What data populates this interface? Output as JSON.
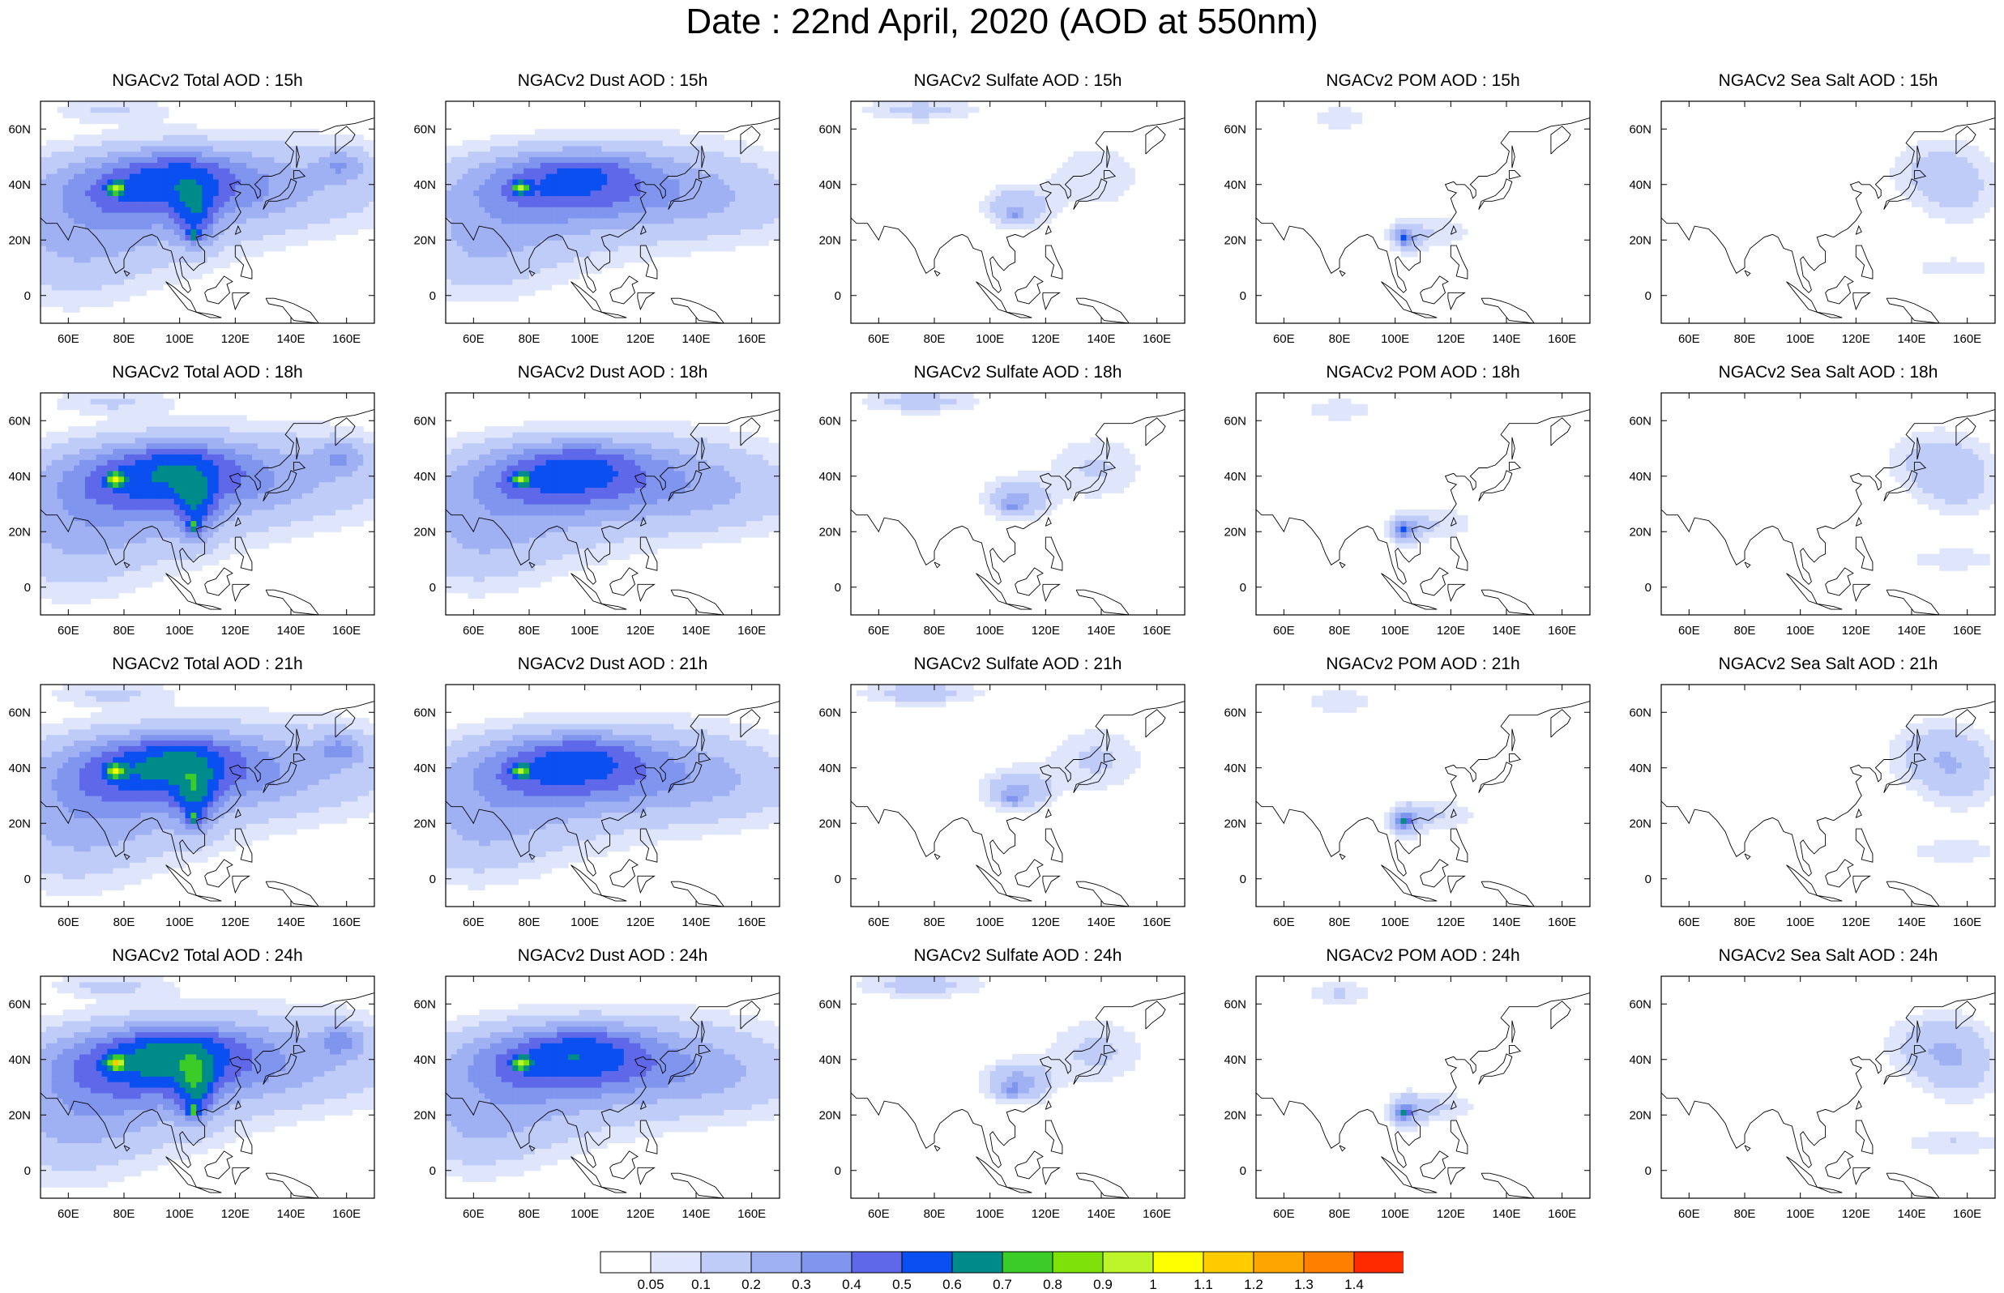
{
  "title": "Date : 22nd April, 2020 (AOD at 550nm)",
  "axes": {
    "x_ticks": [
      {
        "value": 60,
        "label": "60E"
      },
      {
        "value": 80,
        "label": "80E"
      },
      {
        "value": 100,
        "label": "100E"
      },
      {
        "value": 120,
        "label": "120E"
      },
      {
        "value": 140,
        "label": "140E"
      },
      {
        "value": 160,
        "label": "160E"
      }
    ],
    "y_ticks": [
      {
        "value": 0,
        "label": "0"
      },
      {
        "value": 20,
        "label": "20N"
      },
      {
        "value": 40,
        "label": "40N"
      },
      {
        "value": 60,
        "label": "60N"
      }
    ],
    "lon_range": [
      50,
      170
    ],
    "lat_range": [
      -10,
      70
    ]
  },
  "colorbar": {
    "labels": [
      "0.05",
      "0.1",
      "0.2",
      "0.3",
      "0.4",
      "0.5",
      "0.6",
      "0.7",
      "0.8",
      "0.9",
      "1",
      "1.1",
      "1.2",
      "1.3",
      "1.4"
    ],
    "colors": [
      "#ffffff",
      "#dfe6fb",
      "#bfccf7",
      "#9fb1f2",
      "#7f95ee",
      "#5f68e8",
      "#0a4ff0",
      "#008b8b",
      "#3ccc28",
      "#7ce20a",
      "#bef52a",
      "#ffff00",
      "#ffcc00",
      "#ffa500",
      "#ff7f00",
      "#ff2a00"
    ]
  },
  "coastline": [
    [
      [
        48,
        30
      ],
      [
        52,
        26
      ],
      [
        56,
        26
      ],
      [
        58,
        23
      ],
      [
        60,
        20
      ],
      [
        62,
        25
      ],
      [
        67,
        24
      ],
      [
        70,
        21
      ],
      [
        73,
        17
      ],
      [
        75,
        12
      ],
      [
        77,
        8
      ],
      [
        80,
        10
      ],
      [
        80,
        13
      ],
      [
        82,
        17
      ],
      [
        87,
        21
      ],
      [
        90,
        22
      ],
      [
        92,
        21
      ],
      [
        94,
        17
      ],
      [
        97,
        16
      ],
      [
        98,
        12
      ],
      [
        99,
        8
      ],
      [
        101,
        3
      ],
      [
        103,
        1
      ],
      [
        104,
        2
      ],
      [
        103,
        5
      ],
      [
        101,
        7
      ],
      [
        100,
        13
      ],
      [
        101,
        14
      ],
      [
        103,
        11
      ],
      [
        105,
        9
      ],
      [
        107,
        11
      ],
      [
        109,
        12
      ],
      [
        109,
        16
      ],
      [
        107,
        18
      ],
      [
        106,
        21
      ],
      [
        109,
        22
      ],
      [
        112,
        21
      ],
      [
        115,
        23
      ],
      [
        117,
        24
      ],
      [
        120,
        27
      ],
      [
        122,
        30
      ],
      [
        121,
        32
      ],
      [
        120,
        35
      ],
      [
        122,
        37
      ],
      [
        119,
        38
      ],
      [
        118,
        40
      ],
      [
        121,
        41
      ],
      [
        122,
        40
      ],
      [
        125,
        40
      ],
      [
        127,
        38
      ],
      [
        128,
        35
      ],
      [
        129,
        36
      ],
      [
        129,
        38
      ],
      [
        127,
        40
      ],
      [
        130,
        43
      ],
      [
        133,
        43
      ],
      [
        136,
        44
      ],
      [
        140,
        48
      ],
      [
        141,
        52
      ],
      [
        138,
        55
      ],
      [
        141,
        59
      ],
      [
        151,
        59
      ],
      [
        156,
        61
      ],
      [
        163,
        62
      ],
      [
        170,
        64
      ]
    ],
    [
      [
        156,
        51
      ],
      [
        158,
        53
      ],
      [
        162,
        56
      ],
      [
        163,
        58
      ],
      [
        160,
        61
      ],
      [
        156,
        58
      ],
      [
        156,
        51
      ]
    ],
    [
      [
        130,
        31
      ],
      [
        132,
        34
      ],
      [
        135,
        34
      ],
      [
        139,
        35
      ],
      [
        141,
        38
      ],
      [
        142,
        41
      ],
      [
        140,
        42
      ],
      [
        139,
        39
      ],
      [
        136,
        36
      ],
      [
        131,
        34
      ],
      [
        130,
        31
      ]
    ],
    [
      [
        141,
        42
      ],
      [
        145,
        43
      ],
      [
        143,
        45
      ],
      [
        141,
        45
      ],
      [
        141,
        42
      ]
    ],
    [
      [
        142,
        46
      ],
      [
        143,
        50
      ],
      [
        142,
        54
      ],
      [
        142,
        46
      ]
    ],
    [
      [
        120,
        22
      ],
      [
        122,
        23
      ],
      [
        121,
        25
      ],
      [
        120,
        22
      ]
    ],
    [
      [
        120,
        18
      ],
      [
        122,
        18
      ],
      [
        124,
        13
      ],
      [
        126,
        9
      ],
      [
        126,
        6
      ],
      [
        122,
        7
      ],
      [
        123,
        11
      ],
      [
        120,
        14
      ],
      [
        120,
        18
      ]
    ],
    [
      [
        95,
        5
      ],
      [
        98,
        3
      ],
      [
        104,
        -2
      ],
      [
        106,
        -6
      ],
      [
        103,
        -5
      ],
      [
        99,
        0
      ],
      [
        95,
        5
      ]
    ],
    [
      [
        106,
        -6
      ],
      [
        112,
        -7
      ],
      [
        115,
        -8
      ],
      [
        111,
        -8
      ],
      [
        106,
        -6
      ]
    ],
    [
      [
        109,
        1
      ],
      [
        110,
        -2
      ],
      [
        114,
        -3
      ],
      [
        116,
        -1
      ],
      [
        118,
        1
      ],
      [
        117,
        4
      ],
      [
        119,
        5
      ],
      [
        116,
        7
      ],
      [
        113,
        3
      ],
      [
        110,
        2
      ],
      [
        109,
        1
      ]
    ],
    [
      [
        119,
        1
      ],
      [
        121,
        1
      ],
      [
        125,
        1
      ],
      [
        122,
        -1
      ],
      [
        121,
        -3
      ],
      [
        120,
        -5
      ],
      [
        119,
        -1
      ],
      [
        119,
        1
      ]
    ],
    [
      [
        131,
        -1
      ],
      [
        134,
        -1
      ],
      [
        138,
        -2
      ],
      [
        141,
        -3
      ],
      [
        147,
        -6
      ],
      [
        150,
        -10
      ],
      [
        141,
        -9
      ],
      [
        137,
        -4
      ],
      [
        132,
        -3
      ],
      [
        131,
        -1
      ]
    ],
    [
      [
        80,
        9
      ],
      [
        81,
        7
      ],
      [
        82,
        8
      ],
      [
        80,
        9
      ]
    ]
  ],
  "rows": [
    {
      "time": "15h",
      "panels": [
        {
          "title": "NGACv2 Total AOD : 15h",
          "field": "total",
          "amp": 1.0
        },
        {
          "title": "NGACv2 Dust AOD : 15h",
          "field": "dust",
          "amp": 1.0
        },
        {
          "title": "NGACv2 Sulfate AOD : 15h",
          "field": "sulfate",
          "amp": 0.9
        },
        {
          "title": "NGACv2 POM AOD : 15h",
          "field": "pom",
          "amp": 0.9
        },
        {
          "title": "NGACv2 Sea Salt AOD : 15h",
          "field": "seasalt",
          "amp": 0.8
        }
      ]
    },
    {
      "time": "18h",
      "panels": [
        {
          "title": "NGACv2 Total AOD : 18h",
          "field": "total",
          "amp": 1.05
        },
        {
          "title": "NGACv2 Dust AOD : 18h",
          "field": "dust",
          "amp": 1.05
        },
        {
          "title": "NGACv2 Sulfate AOD : 18h",
          "field": "sulfate",
          "amp": 1.0
        },
        {
          "title": "NGACv2 POM AOD : 18h",
          "field": "pom",
          "amp": 1.0
        },
        {
          "title": "NGACv2 Sea Salt AOD : 18h",
          "field": "seasalt",
          "amp": 0.9
        }
      ]
    },
    {
      "time": "21h",
      "panels": [
        {
          "title": "NGACv2 Total AOD : 21h",
          "field": "total",
          "amp": 1.1
        },
        {
          "title": "NGACv2 Dust AOD : 21h",
          "field": "dust",
          "amp": 1.05
        },
        {
          "title": "NGACv2 Sulfate AOD : 21h",
          "field": "sulfate",
          "amp": 1.05
        },
        {
          "title": "NGACv2 POM AOD : 21h",
          "field": "pom",
          "amp": 1.05
        },
        {
          "title": "NGACv2 Sea Salt AOD : 21h",
          "field": "seasalt",
          "amp": 1.0
        }
      ]
    },
    {
      "time": "24h",
      "panels": [
        {
          "title": "NGACv2 Total AOD : 24h",
          "field": "total",
          "amp": 1.15
        },
        {
          "title": "NGACv2 Dust AOD : 24h",
          "field": "dust",
          "amp": 1.1
        },
        {
          "title": "NGACv2 Sulfate AOD : 24h",
          "field": "sulfate",
          "amp": 1.1
        },
        {
          "title": "NGACv2 POM AOD : 24h",
          "field": "pom",
          "amp": 1.1
        },
        {
          "title": "NGACv2 Sea Salt  AOD : 24h",
          "field": "seasalt",
          "amp": 1.05
        }
      ]
    }
  ],
  "fields": {
    "dust": [
      {
        "lon": 92,
        "lat": 40,
        "slon": 25,
        "slat": 8,
        "amp": 0.32
      },
      {
        "lon": 80,
        "lat": 30,
        "slon": 30,
        "slat": 14,
        "amp": 0.18
      },
      {
        "lon": 130,
        "lat": 40,
        "slon": 30,
        "slat": 12,
        "amp": 0.14
      },
      {
        "lon": 150,
        "lat": 32,
        "slon": 25,
        "slat": 10,
        "amp": 0.09
      },
      {
        "lon": 60,
        "lat": 15,
        "slon": 18,
        "slat": 12,
        "amp": 0.12
      },
      {
        "lon": 77,
        "lat": 39,
        "slon": 2,
        "slat": 1.5,
        "amp": 0.45
      },
      {
        "lon": 100,
        "lat": 47,
        "slon": 15,
        "slat": 4,
        "amp": 0.12
      }
    ],
    "sulfate": [
      {
        "lon": 110,
        "lat": 32,
        "slon": 8,
        "slat": 5,
        "amp": 0.22
      },
      {
        "lon": 138,
        "lat": 43,
        "slon": 12,
        "slat": 8,
        "amp": 0.11
      },
      {
        "lon": 75,
        "lat": 67,
        "slon": 15,
        "slat": 3,
        "amp": 0.14
      },
      {
        "lon": 108,
        "lat": 29,
        "slon": 2,
        "slat": 1.5,
        "amp": 0.18
      }
    ],
    "pom": [
      {
        "lon": 104,
        "lat": 21,
        "slon": 4,
        "slat": 4,
        "amp": 0.2
      },
      {
        "lon": 115,
        "lat": 23,
        "slon": 10,
        "slat": 4,
        "amp": 0.1
      },
      {
        "lon": 80,
        "lat": 64,
        "slon": 8,
        "slat": 3,
        "amp": 0.1
      },
      {
        "lon": 103,
        "lat": 21,
        "slon": 1.5,
        "slat": 1.5,
        "amp": 0.35
      }
    ],
    "seasalt": [
      {
        "lon": 150,
        "lat": 45,
        "slon": 12,
        "slat": 8,
        "amp": 0.17
      },
      {
        "lon": 158,
        "lat": 35,
        "slon": 10,
        "slat": 8,
        "amp": 0.1
      },
      {
        "lon": 155,
        "lat": 10,
        "slon": 12,
        "slat": 3,
        "amp": 0.1
      }
    ],
    "total": [
      {
        "lon": 92,
        "lat": 40,
        "slon": 25,
        "slat": 8,
        "amp": 0.32
      },
      {
        "lon": 80,
        "lat": 30,
        "slon": 30,
        "slat": 14,
        "amp": 0.2
      },
      {
        "lon": 135,
        "lat": 40,
        "slon": 35,
        "slat": 12,
        "amp": 0.18
      },
      {
        "lon": 158,
        "lat": 47,
        "slon": 6,
        "slat": 4,
        "amp": 0.18
      },
      {
        "lon": 60,
        "lat": 15,
        "slon": 20,
        "slat": 14,
        "amp": 0.12
      },
      {
        "lon": 77,
        "lat": 39,
        "slon": 2,
        "slat": 1.5,
        "amp": 0.5
      },
      {
        "lon": 106,
        "lat": 28,
        "slon": 5,
        "slat": 8,
        "amp": 0.25
      },
      {
        "lon": 105,
        "lat": 22,
        "slon": 1.5,
        "slat": 1.5,
        "amp": 0.35
      },
      {
        "lon": 100,
        "lat": 47,
        "slon": 15,
        "slat": 4,
        "amp": 0.12
      },
      {
        "lon": 75,
        "lat": 67,
        "slon": 15,
        "slat": 3,
        "amp": 0.1
      }
    ]
  }
}
